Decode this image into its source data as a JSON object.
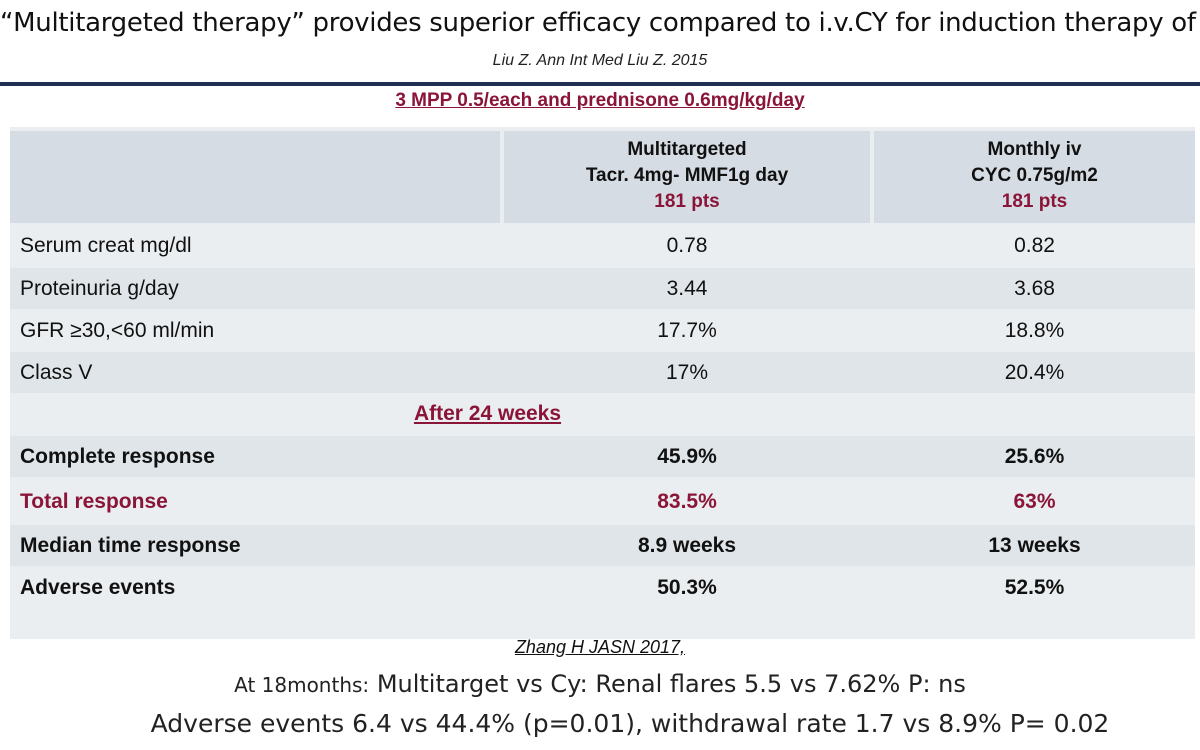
{
  "slide": {
    "title": "“Multitargeted therapy” provides superior efficacy compared to i.v.CY for induction therapy of LN”",
    "citation": "Liu  Z. Ann Int Med Liu Z. 2015",
    "protocol": "3 MPP 0.5/each and prednisone 0.6mg/kg/day"
  },
  "table": {
    "header": {
      "col1_line1": "Multitargeted",
      "col1_line2": "Tacr. 4mg- MMF1g day",
      "col1_pts": "181 pts",
      "col2_line1": "Monthly iv",
      "col2_line2": "CYC 0.75g/m2",
      "col2_pts": "181 pts"
    },
    "baseline_rows": [
      {
        "label": "Serum creat mg/dl",
        "multi": "0.78",
        "cyc": "0.82"
      },
      {
        "label": "Proteinuria g/day",
        "multi": "3.44",
        "cyc": "3.68"
      },
      {
        "label": "GFR ≥30,<60 ml/min",
        "multi": "17.7%",
        "cyc": "18.8%"
      },
      {
        "label": "Class V",
        "multi": "17%",
        "cyc": "20.4%"
      }
    ],
    "section_label": "After 24 weeks",
    "outcome_rows": [
      {
        "label": "Complete response",
        "multi": "45.9%",
        "cyc": "25.6%"
      },
      {
        "label": "Total response",
        "multi": "83.5%",
        "cyc": "63%"
      },
      {
        "label": "Median time response",
        "multi": "8.9 weeks",
        "cyc": "13 weeks"
      },
      {
        "label": "Adverse events",
        "multi": "50.3%",
        "cyc": "52.5%"
      }
    ]
  },
  "footer": {
    "reference": "Zhang H JASN 2017,",
    "line1_lead": "At 18months:",
    "line1_rest": "Multitarget vs Cy: Renal flares 5.5 vs 7.62%  P: ns",
    "line2": "Adverse events  6.4 vs 44.4% (p=0.01), withdrawal rate  1.7 vs 8.9% P= 0.02"
  },
  "colors": {
    "accent_red": "#8a1538",
    "header_fill": "#d6dce3",
    "table_fill": "#eaeef0",
    "title_rule": "#1f2f4f"
  }
}
